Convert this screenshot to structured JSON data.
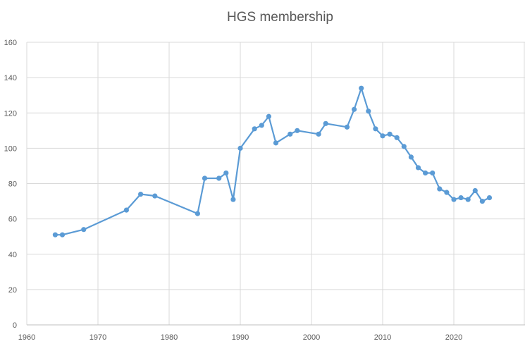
{
  "chart_data": {
    "type": "line",
    "title": "HGS membership",
    "xlabel": "",
    "ylabel": "",
    "xlim": [
      1960,
      2030
    ],
    "ylim": [
      0,
      160
    ],
    "x_ticks": [
      1960,
      1970,
      1980,
      1990,
      2000,
      2010,
      2020
    ],
    "y_ticks": [
      0,
      20,
      40,
      60,
      80,
      100,
      120,
      140,
      160
    ],
    "grid": true,
    "legend": "none",
    "series": [
      {
        "color": "#5b9bd5",
        "points": [
          [
            1964,
            51
          ],
          [
            1965,
            51
          ],
          [
            1968,
            54
          ],
          [
            1974,
            65
          ],
          [
            1976,
            74
          ],
          [
            1978,
            73
          ],
          [
            1984,
            63
          ],
          [
            1985,
            83
          ],
          [
            1987,
            83
          ],
          [
            1988,
            86
          ],
          [
            1989,
            71
          ],
          [
            1990,
            100
          ],
          [
            1992,
            111
          ],
          [
            1993,
            113
          ],
          [
            1994,
            118
          ],
          [
            1995,
            103
          ],
          [
            1997,
            108
          ],
          [
            1998,
            110
          ],
          [
            2001,
            108
          ],
          [
            2002,
            114
          ],
          [
            2005,
            112
          ],
          [
            2006,
            122
          ],
          [
            2007,
            134
          ],
          [
            2008,
            121
          ],
          [
            2009,
            111
          ],
          [
            2010,
            107
          ],
          [
            2011,
            108
          ],
          [
            2012,
            106
          ],
          [
            2013,
            101
          ],
          [
            2014,
            95
          ],
          [
            2015,
            89
          ],
          [
            2016,
            86
          ],
          [
            2017,
            86
          ],
          [
            2018,
            77
          ],
          [
            2019,
            75
          ],
          [
            2020,
            71
          ],
          [
            2021,
            72
          ],
          [
            2022,
            71
          ],
          [
            2023,
            76
          ],
          [
            2024,
            70
          ],
          [
            2025,
            72
          ]
        ]
      }
    ]
  }
}
